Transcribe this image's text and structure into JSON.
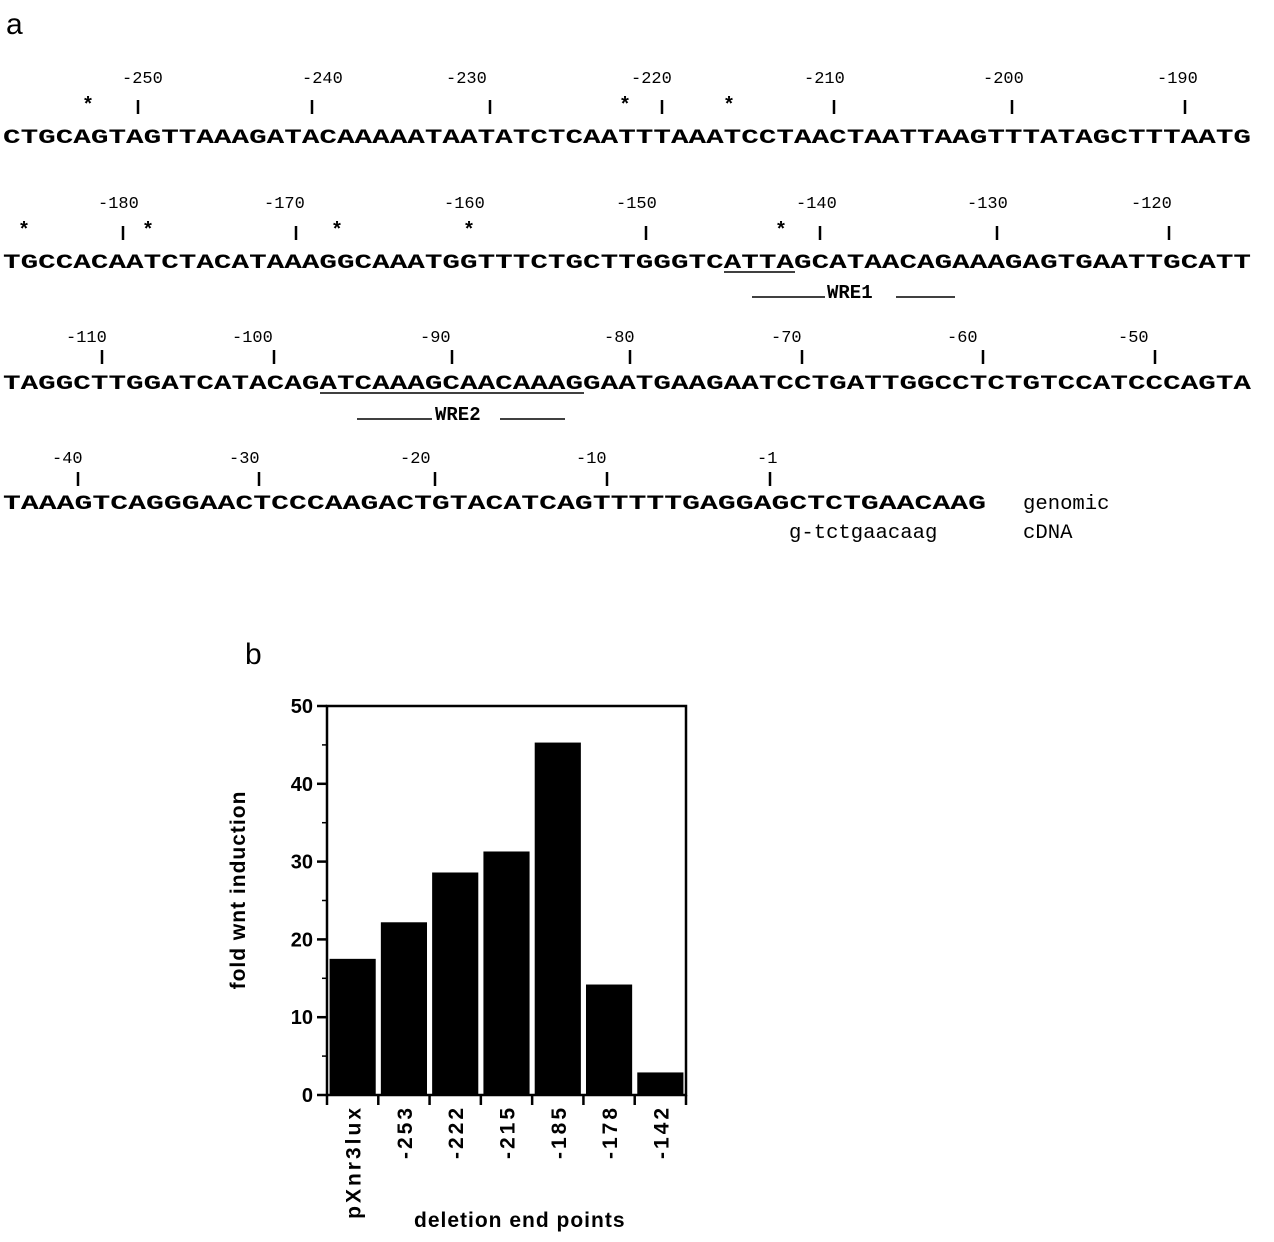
{
  "panel_a": {
    "label": "a",
    "rows": [
      {
        "sequence": "CTGCAGTAGTTAAAGATACAAAAATAATATCTCAATTTAAATCCTAACTAATTAAGTTTATAGCTTTAATG",
        "markers": [
          "-250",
          "-240",
          "-230",
          "-220",
          "-210",
          "-200",
          "-190"
        ],
        "stars": 3
      },
      {
        "sequence": "TGCCACAATCTACATAAAGGCAAATGGTTTCTGCTTGGGTCATTAGCATAACAGAAAGAGTGAATTGCATT",
        "markers": [
          "-180",
          "-170",
          "-160",
          "-150",
          "-140",
          "-130",
          "-120"
        ],
        "stars": 5,
        "underlined": "ATTA",
        "element": "WRE1"
      },
      {
        "sequence": "TAGGCTTGGATCATACAGATCAAAGCAACAAAGGAATGAAGAATCCTGATTGGCCTCTGTCCATCCCAGTA",
        "markers": [
          "-110",
          "-100",
          "-90",
          "-80",
          "-70",
          "-60",
          "-50"
        ],
        "stars": 0,
        "underlined": "ATCAAAGCAACAAAG",
        "element": "WRE2"
      },
      {
        "sequence": "TAAAGTCAGGGAACTCCCAAGACTGTACATCAGTTTTTGAGGAGCTCTGAACAAG",
        "markers": [
          "-40",
          "-30",
          "-20",
          "-10",
          "-1"
        ],
        "stars": 0,
        "trailing_label": "genomic",
        "cdna": "g-tctgaacaag",
        "cdna_label": "cDNA"
      }
    ],
    "star_symbol": "*"
  },
  "panel_b": {
    "label": "b"
  },
  "chart_data": {
    "type": "bar",
    "categories": [
      "pXnr3lux",
      "-253",
      "-222",
      "-215",
      "-185",
      "-178",
      "-142"
    ],
    "values": [
      17.5,
      22.2,
      28.6,
      31.3,
      45.3,
      14.2,
      2.9
    ],
    "title": "",
    "xlabel": "deletion end points",
    "ylabel": "fold wnt induction",
    "ylim": [
      0,
      50
    ],
    "yticks": [
      0,
      10,
      20,
      30,
      40,
      50
    ],
    "bar_color": "#000000",
    "grid": false,
    "legend": "none"
  }
}
